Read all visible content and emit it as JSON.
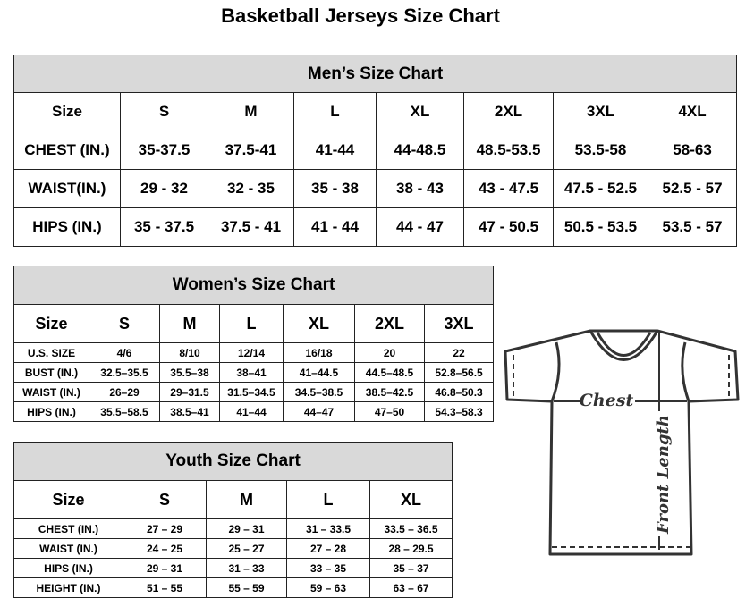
{
  "title": "Basketball Jerseys Size Chart",
  "men": {
    "caption": "Men’s Size Chart",
    "header": [
      "Size",
      "S",
      "M",
      "L",
      "XL",
      "2XL",
      "3XL",
      "4XL"
    ],
    "rows": [
      [
        "CHEST (IN.)",
        "35-37.5",
        "37.5-41",
        "41-44",
        "44-48.5",
        "48.5-53.5",
        "53.5-58",
        "58-63"
      ],
      [
        "WAIST(IN.)",
        "29 - 32",
        "32 - 35",
        "35 - 38",
        "38 - 43",
        "43 - 47.5",
        "47.5 - 52.5",
        "52.5 - 57"
      ],
      [
        "HIPS (IN.)",
        "35 - 37.5",
        "37.5 - 41",
        "41 - 44",
        "44 - 47",
        "47 - 50.5",
        "50.5 - 53.5",
        "53.5 - 57"
      ]
    ]
  },
  "women": {
    "caption": "Women’s Size Chart",
    "header": [
      "Size",
      "S",
      "M",
      "L",
      "XL",
      "2XL",
      "3XL"
    ],
    "rows": [
      [
        "U.S.  SIZE",
        "4/6",
        "8/10",
        "12/14",
        "16/18",
        "20",
        "22"
      ],
      [
        "BUST  (IN.)",
        "32.5–35.5",
        "35.5–38",
        "38–41",
        "41–44.5",
        "44.5–48.5",
        "52.8–56.5"
      ],
      [
        "WAIST  (IN.)",
        "26–29",
        "29–31.5",
        "31.5–34.5",
        "34.5–38.5",
        "38.5–42.5",
        "46.8–50.3"
      ],
      [
        "HIPS  (IN.)",
        "35.5–58.5",
        "38.5–41",
        "41–44",
        "44–47",
        "47–50",
        "54.3–58.3"
      ]
    ]
  },
  "youth": {
    "caption": "Youth Size Chart",
    "header": [
      "Size",
      "S",
      "M",
      "L",
      "XL"
    ],
    "rows": [
      [
        "CHEST  (IN.)",
        "27  –  29",
        "29  –  31",
        "31  –  33.5",
        "33.5  –  36.5"
      ],
      [
        "WAIST  (IN.)",
        "24  –  25",
        "25  –  27",
        "27  –  28",
        "28  –  29.5"
      ],
      [
        "HIPS  (IN.)",
        "29  –  31",
        "31  –  33",
        "33  –  35",
        "35  –  37"
      ],
      [
        "HEIGHT  (IN.)",
        "51  –  55",
        "55  –  59",
        "59  –  63",
        "63  –  67"
      ]
    ]
  },
  "diagram": {
    "chest_label": "Chest",
    "length_label": "Front Length"
  }
}
